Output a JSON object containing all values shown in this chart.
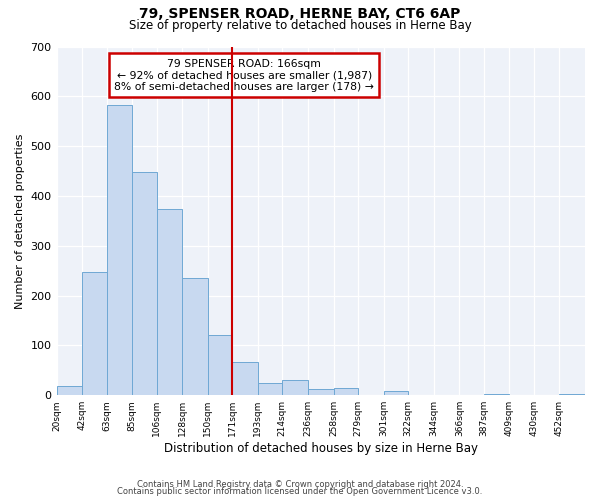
{
  "title": "79, SPENSER ROAD, HERNE BAY, CT6 6AP",
  "subtitle": "Size of property relative to detached houses in Herne Bay",
  "xlabel": "Distribution of detached houses by size in Herne Bay",
  "ylabel": "Number of detached properties",
  "bin_labels": [
    "20sqm",
    "42sqm",
    "63sqm",
    "85sqm",
    "106sqm",
    "128sqm",
    "150sqm",
    "171sqm",
    "193sqm",
    "214sqm",
    "236sqm",
    "258sqm",
    "279sqm",
    "301sqm",
    "322sqm",
    "344sqm",
    "366sqm",
    "387sqm",
    "409sqm",
    "430sqm",
    "452sqm"
  ],
  "bar_values": [
    18,
    247,
    583,
    449,
    374,
    236,
    120,
    67,
    25,
    31,
    12,
    14,
    0,
    8,
    0,
    0,
    0,
    3,
    0,
    0,
    2
  ],
  "bar_color": "#c8d9f0",
  "bar_edge_color": "#6fa8d4",
  "vline_color": "#cc0000",
  "ylim": [
    0,
    700
  ],
  "yticks": [
    0,
    100,
    200,
    300,
    400,
    500,
    600,
    700
  ],
  "annotation_title": "79 SPENSER ROAD: 166sqm",
  "annotation_line1": "← 92% of detached houses are smaller (1,987)",
  "annotation_line2": "8% of semi-detached houses are larger (178) →",
  "annotation_box_color": "#ffffff",
  "annotation_box_edge": "#cc0000",
  "footer1": "Contains HM Land Registry data © Crown copyright and database right 2024.",
  "footer2": "Contains public sector information licensed under the Open Government Licence v3.0.",
  "background_color": "#eef2f9",
  "bin_edges": [
    20,
    42,
    63,
    85,
    106,
    128,
    150,
    171,
    193,
    214,
    236,
    258,
    279,
    301,
    322,
    344,
    366,
    387,
    409,
    430,
    452,
    474
  ]
}
